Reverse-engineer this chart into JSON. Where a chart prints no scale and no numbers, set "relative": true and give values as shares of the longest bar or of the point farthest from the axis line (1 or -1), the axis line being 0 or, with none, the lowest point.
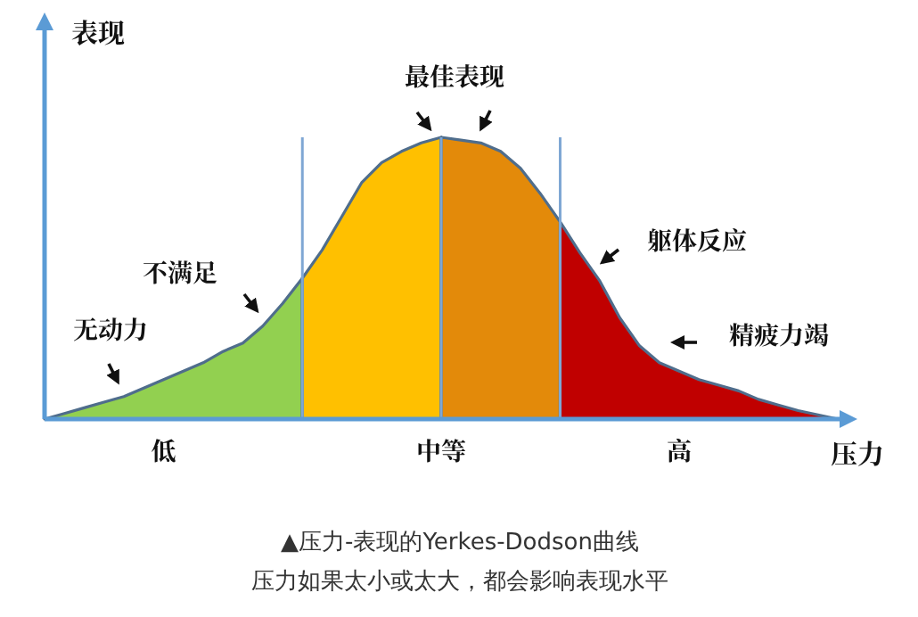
{
  "chart_data": {
    "type": "area",
    "relative": true,
    "xlabel": "压力",
    "ylabel": "表现",
    "categories": [
      null,
      null,
      null,
      null,
      null,
      null,
      "低",
      null,
      null,
      null,
      null,
      null,
      null,
      null,
      null,
      null,
      null,
      null,
      null,
      null,
      "中等",
      null,
      null,
      null,
      null,
      null,
      null,
      null,
      null,
      null,
      null,
      null,
      "高",
      null,
      null,
      null,
      null,
      null,
      null,
      null,
      null
    ],
    "series": [
      {
        "color": "#92d050",
        "values": [
          0,
          0.02,
          0.04,
          0.06,
          0.08,
          0.11,
          0.14,
          0.17,
          0.2,
          0.24,
          0.27,
          0.33,
          0.41,
          0.5,
          null,
          null,
          null,
          null,
          null,
          null,
          null,
          null,
          null,
          null,
          null,
          null,
          null,
          null,
          null,
          null,
          null,
          null,
          null,
          null,
          null,
          null,
          null,
          null,
          null,
          null,
          null
        ]
      },
      {
        "color": "#ffc000",
        "values": [
          null,
          null,
          null,
          null,
          null,
          null,
          null,
          null,
          null,
          null,
          null,
          null,
          null,
          0.5,
          0.6,
          0.72,
          0.84,
          0.91,
          0.95,
          0.98,
          1,
          null,
          null,
          null,
          null,
          null,
          null,
          null,
          null,
          null,
          null,
          null,
          null,
          null,
          null,
          null,
          null,
          null,
          null,
          null,
          null
        ]
      },
      {
        "color": "#e38a0a",
        "values": [
          null,
          null,
          null,
          null,
          null,
          null,
          null,
          null,
          null,
          null,
          null,
          null,
          null,
          null,
          null,
          null,
          null,
          null,
          null,
          null,
          1,
          0.99,
          0.98,
          0.95,
          0.89,
          0.8,
          0.7,
          null,
          null,
          null,
          null,
          null,
          null,
          null,
          null,
          null,
          null,
          null,
          null,
          null,
          null
        ]
      },
      {
        "color": "#c00000",
        "values": [
          null,
          null,
          null,
          null,
          null,
          null,
          null,
          null,
          null,
          null,
          null,
          null,
          null,
          null,
          null,
          null,
          null,
          null,
          null,
          null,
          null,
          null,
          null,
          null,
          null,
          null,
          0.7,
          0.59,
          0.49,
          0.36,
          0.26,
          0.2,
          0.17,
          0.14,
          0.12,
          0.1,
          0.07,
          0.05,
          0.03,
          0.015,
          0
        ]
      }
    ],
    "grid": "x",
    "annotations": [
      "无动力",
      "不满足",
      "最佳表现",
      "躯体反应",
      "精疲力竭",
      "▲压力-表现的Yerkes-Dodson曲线",
      "压力如果太小或太大，都会影响表现水平"
    ]
  }
}
